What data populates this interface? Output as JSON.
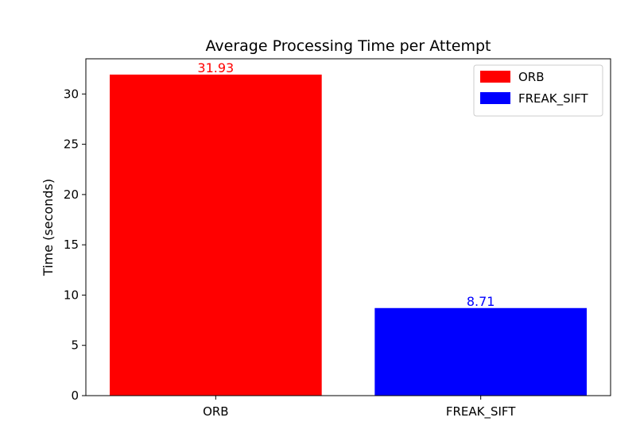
{
  "chart_data": {
    "type": "bar",
    "title": "Average Processing Time per Attempt",
    "xlabel": "",
    "ylabel": "Time (seconds)",
    "categories": [
      "ORB",
      "FREAK_SIFT"
    ],
    "values": [
      31.93,
      8.71
    ],
    "value_labels": [
      "31.93",
      "8.71"
    ],
    "colors": [
      "#ff0000",
      "#0000ff"
    ],
    "ylim": [
      0,
      33.5
    ],
    "yticks": [
      0,
      5,
      10,
      15,
      20,
      25,
      30
    ],
    "grid": false,
    "legend": {
      "placement": "top-right",
      "entries": [
        {
          "label": "ORB",
          "color": "#ff0000"
        },
        {
          "label": "FREAK_SIFT",
          "color": "#0000ff"
        }
      ]
    }
  }
}
